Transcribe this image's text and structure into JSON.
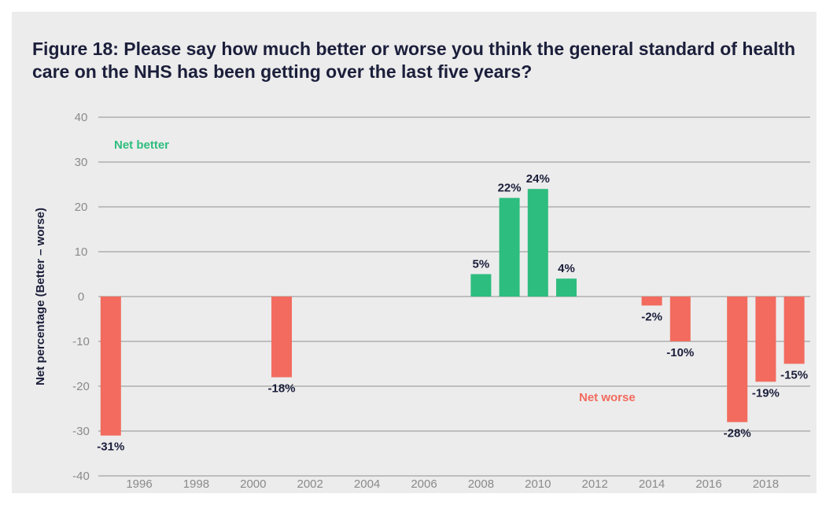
{
  "chart_data": {
    "type": "bar",
    "title": "Figure 18: Please say how much better or worse you think the general standard of health care on the NHS has been getting over the last five years?",
    "ylabel": "Net percentage (Better – worse)",
    "xlabel": "",
    "ylim": [
      -40,
      40
    ],
    "yticks": [
      40,
      30,
      20,
      10,
      0,
      -10,
      -20,
      -30,
      -40
    ],
    "xticks": [
      "1996",
      "1998",
      "2000",
      "2002",
      "2004",
      "2006",
      "2008",
      "2010",
      "2012",
      "2014",
      "2016",
      "2018"
    ],
    "x": [
      1995,
      2001,
      2008,
      2009,
      2010,
      2011,
      2014,
      2015,
      2017,
      2018,
      2019
    ],
    "values": [
      -31,
      -18,
      5,
      22,
      24,
      4,
      -2,
      -10,
      -28,
      -19,
      -15
    ],
    "labels": [
      "-31%",
      "-18%",
      "5%",
      "22%",
      "24%",
      "4%",
      "-2%",
      "-10%",
      "-28%",
      "-19%",
      "-15%"
    ],
    "grid": true,
    "annotations": [
      {
        "text": "Net better",
        "color": "#2dbd7e"
      },
      {
        "text": "Net worse",
        "color": "#f26b5e"
      }
    ],
    "colors": {
      "positive": "#2dbd7e",
      "negative": "#f26b5e"
    }
  }
}
